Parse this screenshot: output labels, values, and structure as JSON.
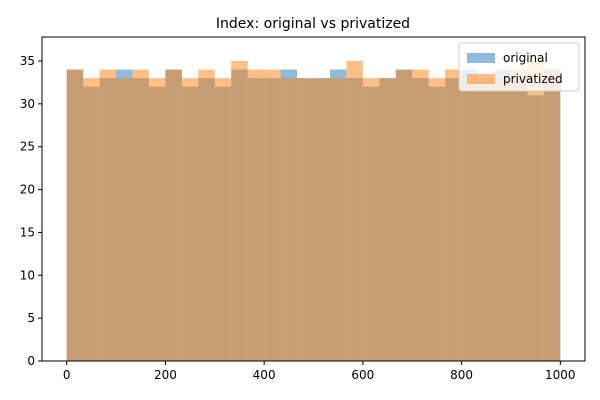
{
  "chart_data": {
    "type": "histogram",
    "title": "Index: original vs privatized",
    "xlabel": "",
    "ylabel": "",
    "xlim": [
      -50,
      1050
    ],
    "ylim": [
      0,
      37.8
    ],
    "xticks": [
      0,
      200,
      400,
      600,
      800,
      1000
    ],
    "yticks": [
      0,
      5,
      10,
      15,
      20,
      25,
      30,
      35
    ],
    "bin_edges": [
      0,
      33.33,
      66.67,
      100,
      133.33,
      166.67,
      200,
      233.33,
      266.67,
      300,
      333.33,
      366.67,
      400,
      433.33,
      466.67,
      500,
      533.33,
      566.67,
      600,
      633.33,
      666.67,
      700,
      733.33,
      766.67,
      800,
      833.33,
      866.67,
      900,
      933.33,
      966.67,
      1000
    ],
    "series": [
      {
        "name": "original",
        "color": "#1f77b4",
        "opacity": 0.5,
        "values": [
          34,
          32,
          33,
          34,
          33,
          32,
          34,
          32,
          33,
          32,
          34,
          33,
          33,
          34,
          33,
          33,
          34,
          33,
          32,
          33,
          34,
          33,
          32,
          33,
          34,
          33,
          34,
          33,
          31,
          34
        ]
      },
      {
        "name": "privatized",
        "color": "#ff7f0e",
        "opacity": 0.5,
        "values": [
          34,
          33,
          34,
          33,
          34,
          33,
          34,
          33,
          34,
          33,
          35,
          34,
          34,
          33,
          33,
          33,
          33,
          35,
          33,
          33,
          34,
          34,
          33,
          34,
          33,
          33,
          33,
          34,
          35,
          34
        ]
      }
    ],
    "legend": {
      "position": "top-right",
      "entries": [
        "original",
        "privatized"
      ]
    }
  }
}
